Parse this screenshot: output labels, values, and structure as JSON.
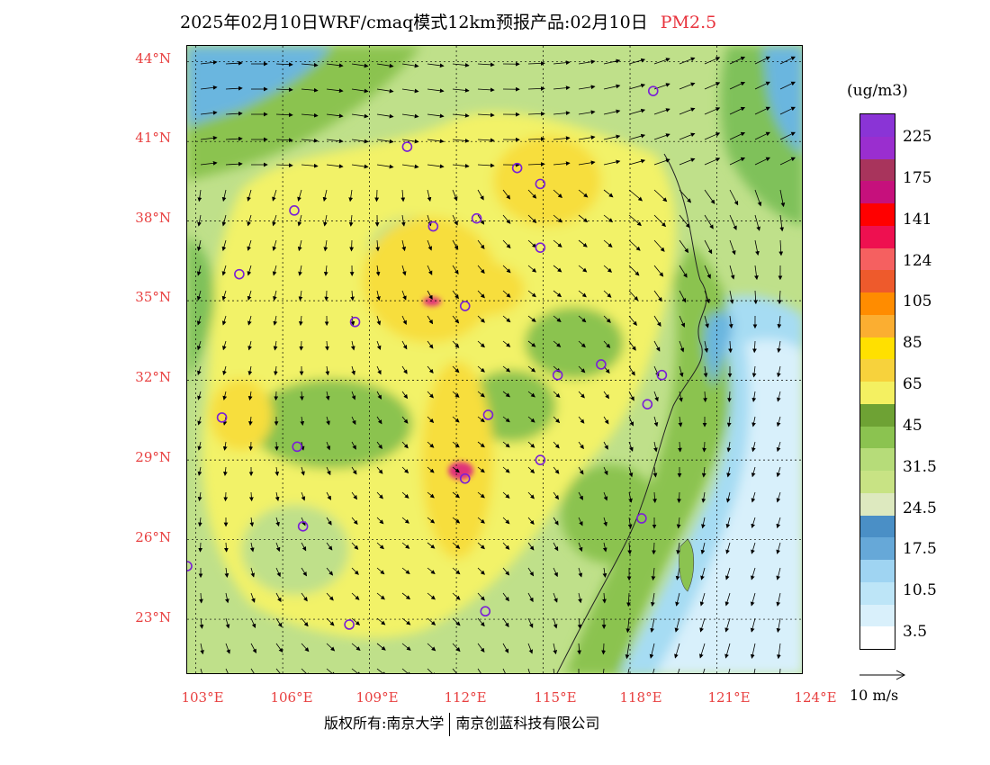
{
  "title": {
    "main": "2025年02月10日WRF/cmaq模式12km预报产品:02月10日",
    "pollutant": "PM2.5"
  },
  "map": {
    "lat_labels": [
      "44°N",
      "41°N",
      "38°N",
      "35°N",
      "32°N",
      "29°N",
      "26°N",
      "23°N"
    ],
    "lon_labels": [
      "103°E",
      "106°E",
      "109°E",
      "112°E",
      "115°E",
      "118°E",
      "121°E",
      "124°E"
    ],
    "lat_range": [
      20.9,
      44.6
    ],
    "lon_range": [
      102.7,
      124.0
    ],
    "stations": [
      [
        118.8,
        42.9
      ],
      [
        110.3,
        40.8
      ],
      [
        114.1,
        40.0
      ],
      [
        114.9,
        39.4
      ],
      [
        106.4,
        38.4
      ],
      [
        111.2,
        37.8
      ],
      [
        112.7,
        38.1
      ],
      [
        114.9,
        37.0
      ],
      [
        104.5,
        36.0
      ],
      [
        112.3,
        34.8
      ],
      [
        108.5,
        34.2
      ],
      [
        117.0,
        32.6
      ],
      [
        115.5,
        32.2
      ],
      [
        119.1,
        32.2
      ],
      [
        103.9,
        30.6
      ],
      [
        113.1,
        30.7
      ],
      [
        118.6,
        31.1
      ],
      [
        106.5,
        29.5
      ],
      [
        114.9,
        29.0
      ],
      [
        112.3,
        28.3
      ],
      [
        106.7,
        26.5
      ],
      [
        118.4,
        26.8
      ],
      [
        102.7,
        25.0
      ],
      [
        108.3,
        22.8
      ],
      [
        113.0,
        23.3
      ]
    ],
    "zone_colors": {
      "ocean_light": "#d8f0fb",
      "ocean_mid": "#a6dcf3",
      "ocean_blue": "#6bb6df",
      "low_green": "#bfe08a",
      "mid_green": "#7fc15a",
      "yellow": "#f2f267",
      "yellow_orange": "#f7de3c",
      "hotspot": "#e0307a"
    }
  },
  "legend": {
    "unit": "(ug/m3)",
    "colors": [
      "#8a34d6",
      "#9a2ecf",
      "#a8345c",
      "#c6107c",
      "#ff0000",
      "#ee1050",
      "#f56060",
      "#ee5a2c",
      "#ff8c00",
      "#fbae31",
      "#ffe000",
      "#f7d23c",
      "#f4f061",
      "#6ea234",
      "#8bc350",
      "#b6dc79",
      "#c8e384",
      "#dde9bf",
      "#4a8fc6",
      "#66a8d8",
      "#9fd4f2",
      "#bde5f7",
      "#d9f0fb",
      "#ffffff"
    ],
    "labels": [
      "225",
      "175",
      "141",
      "124",
      "105",
      "85",
      "65",
      "45",
      "31.5",
      "24.5",
      "17.5",
      "10.5",
      "3.5"
    ],
    "wind_label": "10 m/s"
  },
  "footer": {
    "copyright": "版权所有:南京大学",
    "company": "南京创蓝科技有限公司"
  }
}
